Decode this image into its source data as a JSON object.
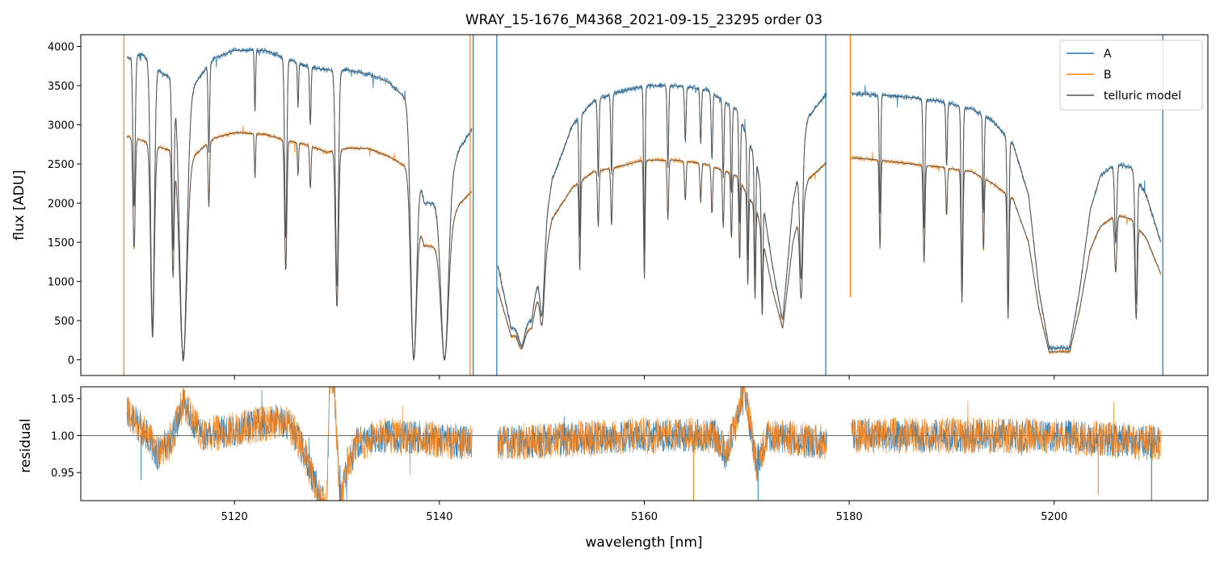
{
  "title": "WRAY_15-1676_M4368_2021-09-15_23295  order 03",
  "colors": {
    "A": "#1f77b4",
    "B": "#ff7f0e",
    "telluric": "#555555",
    "refline": "#555555"
  },
  "chart_data": [
    {
      "name": "spectrum",
      "type": "line",
      "ylabel": "flux [ADU]",
      "xlim": [
        5105,
        5215
      ],
      "ylim": [
        -200,
        4150
      ],
      "yticks": [
        0,
        500,
        1000,
        1500,
        2000,
        2500,
        3000,
        3500,
        4000
      ],
      "xticks": [
        5120,
        5140,
        5160,
        5180,
        5200
      ],
      "legend": {
        "placement": "top-right",
        "entries": [
          "A",
          "B",
          "telluric model"
        ]
      },
      "segments": [
        [
          5109.5,
          5143.2
        ],
        [
          5145.7,
          5177.8
        ],
        [
          5180.2,
          5210.4
        ]
      ],
      "continuum": {
        "A": [
          [
            5109.5,
            3850
          ],
          [
            5111,
            3900
          ],
          [
            5113,
            3650
          ],
          [
            5116,
            3500
          ],
          [
            5118,
            3850
          ],
          [
            5120,
            3950
          ],
          [
            5123,
            3950
          ],
          [
            5125,
            3850
          ],
          [
            5127,
            3750
          ],
          [
            5129,
            3700
          ],
          [
            5131,
            3700
          ],
          [
            5133,
            3650
          ],
          [
            5135,
            3550
          ],
          [
            5137,
            3300
          ],
          [
            5138.5,
            2000
          ],
          [
            5140,
            2000
          ],
          [
            5142,
            2700
          ],
          [
            5143.2,
            2950
          ],
          [
            5145.7,
            1200
          ],
          [
            5147,
            400
          ],
          [
            5149,
            500
          ],
          [
            5151,
            2300
          ],
          [
            5153,
            3000
          ],
          [
            5155,
            3300
          ],
          [
            5157,
            3400
          ],
          [
            5160,
            3500
          ],
          [
            5163,
            3500
          ],
          [
            5166,
            3450
          ],
          [
            5169,
            3200
          ],
          [
            5171,
            2500
          ],
          [
            5172.5,
            1200
          ],
          [
            5173.5,
            500
          ],
          [
            5174.5,
            2000
          ],
          [
            5176,
            3100
          ],
          [
            5177.8,
            3400
          ],
          [
            5180.2,
            3400
          ],
          [
            5183,
            3380
          ],
          [
            5186,
            3350
          ],
          [
            5189,
            3300
          ],
          [
            5192,
            3200
          ],
          [
            5194,
            3050
          ],
          [
            5196,
            2750
          ],
          [
            5197.5,
            2100
          ],
          [
            5198.5,
            900
          ],
          [
            5199.5,
            150
          ],
          [
            5201.5,
            150
          ],
          [
            5202.5,
            900
          ],
          [
            5203.5,
            1900
          ],
          [
            5204.5,
            2350
          ],
          [
            5206,
            2500
          ],
          [
            5207.5,
            2450
          ],
          [
            5209,
            2100
          ],
          [
            5210.4,
            1500
          ]
        ],
        "B": [
          [
            5109.5,
            2850
          ],
          [
            5111,
            2800
          ],
          [
            5113,
            2700
          ],
          [
            5116,
            2600
          ],
          [
            5118,
            2830
          ],
          [
            5120,
            2900
          ],
          [
            5123,
            2880
          ],
          [
            5125,
            2800
          ],
          [
            5127,
            2750
          ],
          [
            5129,
            2650
          ],
          [
            5131,
            2700
          ],
          [
            5133,
            2700
          ],
          [
            5135,
            2600
          ],
          [
            5137,
            2450
          ],
          [
            5138.5,
            1450
          ],
          [
            5140,
            1450
          ],
          [
            5142,
            2000
          ],
          [
            5143.2,
            2150
          ],
          [
            5145.7,
            900
          ],
          [
            5147,
            300
          ],
          [
            5149,
            400
          ],
          [
            5151,
            1800
          ],
          [
            5153,
            2200
          ],
          [
            5155,
            2400
          ],
          [
            5157,
            2450
          ],
          [
            5160,
            2550
          ],
          [
            5163,
            2550
          ],
          [
            5166,
            2500
          ],
          [
            5169,
            2350
          ],
          [
            5171,
            1900
          ],
          [
            5172.5,
            900
          ],
          [
            5173.5,
            400
          ],
          [
            5174.5,
            1500
          ],
          [
            5176,
            2300
          ],
          [
            5177.8,
            2520
          ],
          [
            5180.2,
            2580
          ],
          [
            5183,
            2550
          ],
          [
            5186,
            2500
          ],
          [
            5189,
            2460
          ],
          [
            5192,
            2400
          ],
          [
            5194,
            2250
          ],
          [
            5196,
            2050
          ],
          [
            5197.5,
            1500
          ],
          [
            5198.5,
            650
          ],
          [
            5199.5,
            100
          ],
          [
            5201.5,
            100
          ],
          [
            5202.5,
            650
          ],
          [
            5203.5,
            1400
          ],
          [
            5204.5,
            1700
          ],
          [
            5206,
            1850
          ],
          [
            5207.5,
            1800
          ],
          [
            5209,
            1550
          ],
          [
            5210.4,
            1100
          ]
        ]
      },
      "absorption_lines": [
        {
          "x": 5110.2,
          "depth": 0.5,
          "width": 0.15
        },
        {
          "x": 5112.0,
          "depth": 0.9,
          "width": 0.25
        },
        {
          "x": 5114.0,
          "depth": 0.6,
          "width": 0.15
        },
        {
          "x": 5115.0,
          "depth": 1.0,
          "width": 0.5
        },
        {
          "x": 5117.5,
          "depth": 0.3,
          "width": 0.1
        },
        {
          "x": 5122.0,
          "depth": 0.2,
          "width": 0.08
        },
        {
          "x": 5125.0,
          "depth": 0.6,
          "width": 0.15
        },
        {
          "x": 5126.2,
          "depth": 0.15,
          "width": 0.08
        },
        {
          "x": 5127.4,
          "depth": 0.2,
          "width": 0.1
        },
        {
          "x": 5130.0,
          "depth": 0.75,
          "width": 0.2
        },
        {
          "x": 5137.5,
          "depth": 1.0,
          "width": 0.4
        },
        {
          "x": 5140.5,
          "depth": 1.0,
          "width": 0.5
        },
        {
          "x": 5148.0,
          "depth": 0.6,
          "width": 0.4
        },
        {
          "x": 5150.0,
          "depth": 0.6,
          "width": 0.3
        },
        {
          "x": 5153.7,
          "depth": 0.5,
          "width": 0.1
        },
        {
          "x": 5155.5,
          "depth": 0.3,
          "width": 0.1
        },
        {
          "x": 5156.8,
          "depth": 0.3,
          "width": 0.1
        },
        {
          "x": 5160.0,
          "depth": 0.6,
          "width": 0.1
        },
        {
          "x": 5162.3,
          "depth": 0.3,
          "width": 0.1
        },
        {
          "x": 5164.0,
          "depth": 0.2,
          "width": 0.1
        },
        {
          "x": 5165.5,
          "depth": 0.2,
          "width": 0.1
        },
        {
          "x": 5166.6,
          "depth": 0.25,
          "width": 0.1
        },
        {
          "x": 5167.7,
          "depth": 0.3,
          "width": 0.1
        },
        {
          "x": 5168.5,
          "depth": 0.35,
          "width": 0.1
        },
        {
          "x": 5169.3,
          "depth": 0.45,
          "width": 0.1
        },
        {
          "x": 5170.1,
          "depth": 0.55,
          "width": 0.1
        },
        {
          "x": 5170.8,
          "depth": 0.6,
          "width": 0.1
        },
        {
          "x": 5171.5,
          "depth": 0.65,
          "width": 0.1
        },
        {
          "x": 5175.3,
          "depth": 0.6,
          "width": 0.2
        },
        {
          "x": 5183.0,
          "depth": 0.45,
          "width": 0.1
        },
        {
          "x": 5187.3,
          "depth": 0.5,
          "width": 0.12
        },
        {
          "x": 5189.5,
          "depth": 0.25,
          "width": 0.1
        },
        {
          "x": 5191.0,
          "depth": 0.7,
          "width": 0.12
        },
        {
          "x": 5193.1,
          "depth": 0.4,
          "width": 0.1
        },
        {
          "x": 5195.5,
          "depth": 0.75,
          "width": 0.12
        },
        {
          "x": 5206.0,
          "depth": 0.4,
          "width": 0.15
        },
        {
          "x": 5208.0,
          "depth": 0.7,
          "width": 0.15
        }
      ],
      "spikes": [
        {
          "x": 5109.2,
          "series": "B",
          "from": -200,
          "to": 4150
        },
        {
          "x": 5143.0,
          "series": "B",
          "from": -200,
          "to": 4150
        },
        {
          "x": 5143.3,
          "series": "A",
          "from": -200,
          "to": 4150
        },
        {
          "x": 5145.6,
          "series": "A",
          "from": -200,
          "to": 4150
        },
        {
          "x": 5177.7,
          "series": "A",
          "from": -200,
          "to": 4150
        },
        {
          "x": 5180.1,
          "series": "B",
          "from": 800,
          "to": 4150
        },
        {
          "x": 5210.6,
          "series": "A",
          "from": -200,
          "to": 4150
        }
      ]
    },
    {
      "name": "residual",
      "type": "line",
      "xlabel": "wavelength [nm]",
      "ylabel": "residual",
      "xlim": [
        5105,
        5215
      ],
      "ylim": [
        0.912,
        1.066
      ],
      "yticks": [
        0.95,
        1.0,
        1.05
      ],
      "ytick_labels": [
        "0.95",
        "1.00",
        "1.05"
      ],
      "xticks": [
        5120,
        5140,
        5160,
        5180,
        5200
      ],
      "reference_line": 1.0,
      "segments": [
        [
          5109.5,
          5143.2
        ],
        [
          5145.7,
          5177.8
        ],
        [
          5180.2,
          5210.4
        ]
      ],
      "trend": [
        [
          5109.5,
          1.03
        ],
        [
          5111,
          1.01
        ],
        [
          5112.5,
          0.975
        ],
        [
          5114,
          1.0
        ],
        [
          5115,
          1.045
        ],
        [
          5116,
          1.02
        ],
        [
          5117,
          1.0
        ],
        [
          5119,
          1.005
        ],
        [
          5122,
          1.015
        ],
        [
          5125,
          1.02
        ],
        [
          5126,
          1.0
        ],
        [
          5127,
          0.97
        ],
        [
          5128,
          0.93
        ],
        [
          5129,
          0.9
        ],
        [
          5129.3,
          1.08
        ],
        [
          5129.7,
          1.08
        ],
        [
          5130.3,
          0.91
        ],
        [
          5131,
          0.96
        ],
        [
          5132,
          0.99
        ],
        [
          5135,
          1.0
        ],
        [
          5143.2,
          0.99
        ],
        [
          5145.7,
          0.99
        ],
        [
          5160,
          1.0
        ],
        [
          5167,
          1.0
        ],
        [
          5168,
          0.975
        ],
        [
          5169,
          1.02
        ],
        [
          5169.7,
          1.07
        ],
        [
          5170.5,
          1.0
        ],
        [
          5171,
          0.96
        ],
        [
          5172,
          1.0
        ],
        [
          5177.8,
          0.99
        ],
        [
          5180.2,
          1.0
        ],
        [
          5190,
          1.0
        ],
        [
          5200,
          1.0
        ],
        [
          5210.4,
          0.99
        ]
      ],
      "spikes": [
        {
          "x": 5110.9,
          "series": "A",
          "from": 0.94,
          "to": 1.0
        },
        {
          "x": 5130.3,
          "series": "A",
          "from": 0.912,
          "to": 0.96
        },
        {
          "x": 5164.8,
          "series": "B",
          "from": 0.912,
          "to": 0.98
        },
        {
          "x": 5171.1,
          "series": "A",
          "from": 0.912,
          "to": 0.99
        },
        {
          "x": 5204.3,
          "series": "B",
          "from": 0.92,
          "to": 0.99
        },
        {
          "x": 5209.5,
          "series": "A",
          "from": 0.912,
          "to": 0.99
        }
      ]
    }
  ]
}
